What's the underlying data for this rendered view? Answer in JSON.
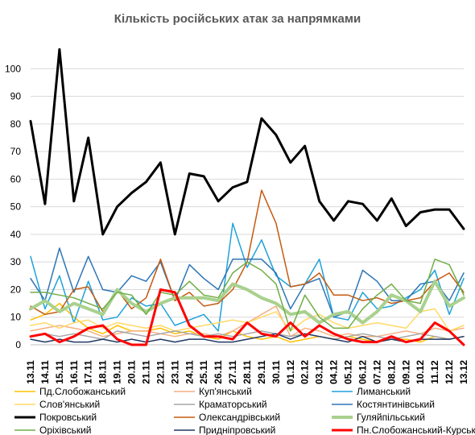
{
  "chart_data": {
    "type": "line",
    "title": "Кількість російських атак за напрямками",
    "xlabel": "",
    "ylabel": "",
    "ylim": [
      0,
      110
    ],
    "yticks": [
      0,
      10,
      20,
      30,
      40,
      50,
      60,
      70,
      80,
      90,
      100
    ],
    "grid": "horizontal",
    "legend_position": "bottom",
    "categories": [
      "13.11",
      "14.11",
      "15.11",
      "16.11",
      "17.11",
      "18.11",
      "19.11",
      "20.11",
      "21.11",
      "22.11",
      "23.11",
      "24.11",
      "25.11",
      "26.11",
      "27.11",
      "28.11",
      "29.11",
      "30.11",
      "01.12",
      "02.12",
      "03.12",
      "04.12",
      "05.12",
      "06.12",
      "07.12",
      "08.12",
      "09.12",
      "10.12",
      "11.12",
      "12.12",
      "13.12"
    ],
    "series": [
      {
        "name": "Пд.Слобожанський",
        "color": "#FFC000",
        "width": 1.5,
        "values": [
          9,
          11,
          15,
          10,
          6,
          4,
          7,
          5,
          5,
          6,
          4,
          5,
          3,
          2,
          5,
          3,
          2,
          3,
          1,
          2,
          3,
          2,
          3,
          2,
          1,
          2,
          2,
          1,
          3,
          2,
          3
        ]
      },
      {
        "name": "Куп'янський",
        "color": "#F4B183",
        "width": 1.5,
        "values": [
          5,
          6,
          7,
          6,
          5,
          3,
          4,
          5,
          5,
          4,
          3,
          4,
          4,
          3,
          5,
          8,
          11,
          14,
          3,
          6,
          5,
          3,
          4,
          3,
          3,
          4,
          5,
          4,
          6,
          5,
          6
        ]
      },
      {
        "name": "Лиманський",
        "color": "#1FA2D9",
        "width": 1.5,
        "values": [
          32,
          13,
          25,
          8,
          23,
          9,
          10,
          17,
          14,
          15,
          7,
          9,
          11,
          5,
          44,
          28,
          38,
          25,
          21,
          22,
          31,
          10,
          9,
          19,
          13,
          14,
          17,
          20,
          27,
          11,
          24
        ]
      },
      {
        "name": "Слов'янський",
        "color": "#FFD966",
        "width": 1.5,
        "values": [
          7,
          8,
          6,
          8,
          9,
          6,
          8,
          7,
          6,
          7,
          5,
          6,
          7,
          8,
          9,
          8,
          10,
          12,
          5,
          9,
          11,
          8,
          6,
          7,
          8,
          7,
          6,
          12,
          13,
          5,
          7
        ]
      },
      {
        "name": "Краматорський",
        "color": "#A5A5A5",
        "width": 1.5,
        "values": [
          3,
          4,
          3,
          4,
          3,
          2,
          5,
          4,
          3,
          4,
          5,
          4,
          3,
          4,
          3,
          4,
          5,
          4,
          3,
          4,
          3,
          2,
          3,
          4,
          3,
          2,
          3,
          4,
          3,
          2,
          3
        ]
      },
      {
        "name": "Костянтинівський",
        "color": "#2E75B6",
        "width": 1.5,
        "values": [
          24,
          16,
          35,
          19,
          32,
          20,
          19,
          25,
          23,
          30,
          16,
          29,
          24,
          20,
          31,
          31,
          31,
          26,
          13,
          22,
          24,
          10,
          12,
          27,
          23,
          16,
          16,
          22,
          23,
          16,
          26
        ]
      },
      {
        "name": "Покровський",
        "color": "#000000",
        "width": 3,
        "values": [
          81,
          51,
          107,
          52,
          75,
          40,
          50,
          55,
          59,
          66,
          40,
          62,
          61,
          52,
          57,
          59,
          82,
          76,
          66,
          72,
          52,
          45,
          52,
          51,
          45,
          53,
          43,
          48,
          49,
          49,
          42
        ]
      },
      {
        "name": "Олександрівський",
        "color": "#C55A11",
        "width": 1.5,
        "values": [
          14,
          11,
          12,
          20,
          21,
          12,
          20,
          13,
          17,
          31,
          16,
          19,
          14,
          15,
          20,
          30,
          56,
          44,
          21,
          22,
          26,
          18,
          18,
          16,
          17,
          15,
          16,
          17,
          23,
          26,
          19
        ]
      },
      {
        "name": "Гуляйпільський",
        "color": "#A9D18E",
        "width": 4,
        "values": [
          13,
          16,
          12,
          15,
          13,
          11,
          20,
          15,
          12,
          15,
          17,
          17,
          17,
          16,
          22,
          20,
          17,
          15,
          11,
          12,
          8,
          11,
          12,
          8,
          12,
          18,
          16,
          12,
          23,
          14,
          17
        ]
      },
      {
        "name": "Оріхівський",
        "color": "#70AD47",
        "width": 1.5,
        "values": [
          19,
          19,
          18,
          17,
          15,
          13,
          19,
          18,
          11,
          19,
          18,
          23,
          18,
          17,
          26,
          30,
          27,
          22,
          5,
          18,
          10,
          6,
          6,
          13,
          18,
          22,
          16,
          15,
          31,
          29,
          18
        ]
      },
      {
        "name": "Придніпровський",
        "color": "#203864",
        "width": 1.5,
        "values": [
          2,
          1,
          2,
          1,
          1,
          2,
          1,
          2,
          1,
          2,
          1,
          2,
          2,
          1,
          1,
          2,
          3,
          4,
          2,
          4,
          3,
          2,
          1,
          3,
          1,
          2,
          1,
          2,
          2,
          2,
          3
        ]
      },
      {
        "name": "Пн.Слобожанський-Курський",
        "color": "#FF0000",
        "width": 3,
        "values": [
          3,
          4,
          1,
          3,
          6,
          7,
          2,
          0,
          0,
          20,
          19,
          7,
          3,
          3,
          2,
          8,
          4,
          3,
          8,
          3,
          7,
          4,
          2,
          1,
          1,
          3,
          1,
          2,
          8,
          5,
          0
        ]
      }
    ]
  }
}
